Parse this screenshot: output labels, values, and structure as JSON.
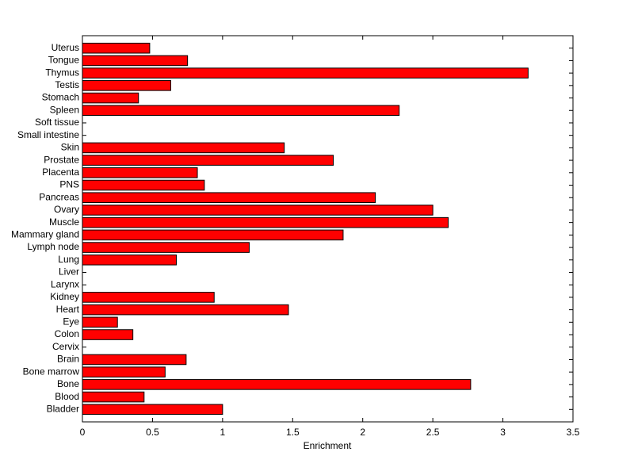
{
  "chart_data": {
    "type": "barh",
    "x_label": "Enrichment",
    "categories": [
      "Bladder",
      "Blood",
      "Bone",
      "Bone marrow",
      "Brain",
      "Cervix",
      "Colon",
      "Eye",
      "Heart",
      "Kidney",
      "Larynx",
      "Liver",
      "Lung",
      "Lymph node",
      "Mammary gland",
      "Muscle",
      "Ovary",
      "Pancreas",
      "PNS",
      "Placenta",
      "Prostate",
      "Skin",
      "Small intestine",
      "Soft tissue",
      "Spleen",
      "Stomach",
      "Testis",
      "Thymus",
      "Tongue",
      "Uterus"
    ],
    "values": [
      1.0,
      0.44,
      2.77,
      0.59,
      0.74,
      0,
      0.36,
      0.25,
      1.47,
      0.94,
      0,
      0,
      0.67,
      1.19,
      1.86,
      2.61,
      2.5,
      2.09,
      0.87,
      0.82,
      1.79,
      1.44,
      0,
      0,
      2.26,
      0.4,
      0.63,
      3.18,
      0.75,
      0.48
    ],
    "color": "#ff0000",
    "xlim": [
      0,
      3.5
    ],
    "xticks": [
      0,
      0.5,
      1,
      1.5,
      2,
      2.5,
      3,
      3.5
    ],
    "grid": false
  }
}
